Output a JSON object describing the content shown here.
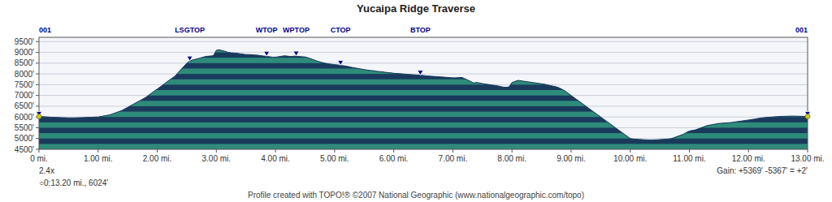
{
  "chart_data": {
    "type": "area",
    "title": "Yucaipa Ridge Traverse",
    "subtitle": "Profile created with TOPO!® ©2007 National Geographic (www.nationalgeographic.com/topo)",
    "footnotes": [
      "2.4x",
      "○0:13.20 mi., 6024'",
      "Gain: +5369' -5367' = +2'"
    ],
    "color": "#1a3a5c",
    "grid": true,
    "xlim": [
      0,
      13.0
    ],
    "ylim": [
      4500,
      9700
    ],
    "xticks": [
      {
        "value": 0,
        "label": "0 mi."
      },
      {
        "value": 1,
        "label": "1.00 mi."
      },
      {
        "value": 2,
        "label": "2.00 mi."
      },
      {
        "value": 3,
        "label": "3.00 mi."
      },
      {
        "value": 4,
        "label": "4.00 mi."
      },
      {
        "value": 5,
        "label": "5.00 mi."
      },
      {
        "value": 6,
        "label": "6.00 mi."
      },
      {
        "value": 7,
        "label": "7.00 mi."
      },
      {
        "value": 8,
        "label": "8.00 mi."
      },
      {
        "value": 9,
        "label": "9.00 mi."
      },
      {
        "value": 10,
        "label": "10.00 mi."
      },
      {
        "value": 11,
        "label": "11.00 mi."
      },
      {
        "value": 12,
        "label": "12.00 mi."
      },
      {
        "value": 13,
        "label": "13.00 mi."
      }
    ],
    "yticks": [
      {
        "value": 4500,
        "label": "4500'"
      },
      {
        "value": 5000,
        "label": "5000'"
      },
      {
        "value": 5500,
        "label": "5500'"
      },
      {
        "value": 6000,
        "label": "6000'"
      },
      {
        "value": 6500,
        "label": "6500'"
      },
      {
        "value": 7000,
        "label": "7000'"
      },
      {
        "value": 7500,
        "label": "7500'"
      },
      {
        "value": 8000,
        "label": "8000'"
      },
      {
        "value": 8500,
        "label": "8500'"
      },
      {
        "value": 9000,
        "label": "9000'"
      },
      {
        "value": 9500,
        "label": "9500'"
      }
    ],
    "annotations": [
      {
        "text": "001",
        "x": 0.0,
        "y": 6024
      },
      {
        "text": "LSGTOP",
        "x": 2.55,
        "y": 8600
      },
      {
        "text": "WTOP",
        "x": 3.85,
        "y": 8820
      },
      {
        "text": "WPTOP",
        "x": 4.35,
        "y": 8830
      },
      {
        "text": "CTOP",
        "x": 5.1,
        "y": 8400
      },
      {
        "text": "BTOP",
        "x": 6.45,
        "y": 7940
      },
      {
        "text": "001",
        "x": 13.0,
        "y": 6024
      }
    ],
    "x": [
      0.0,
      0.05,
      0.1,
      0.2,
      0.3,
      0.4,
      0.5,
      0.6,
      0.7,
      0.8,
      0.9,
      1.0,
      1.1,
      1.2,
      1.3,
      1.4,
      1.5,
      1.6,
      1.7,
      1.8,
      1.9,
      2.0,
      2.1,
      2.2,
      2.3,
      2.4,
      2.5,
      2.55,
      2.6,
      2.65,
      2.7,
      2.75,
      2.8,
      2.85,
      2.9,
      2.95,
      3.0,
      3.05,
      3.1,
      3.15,
      3.2,
      3.25,
      3.3,
      3.35,
      3.4,
      3.45,
      3.5,
      3.55,
      3.6,
      3.65,
      3.7,
      3.75,
      3.8,
      3.85,
      3.9,
      3.95,
      4.0,
      4.05,
      4.1,
      4.15,
      4.2,
      4.25,
      4.3,
      4.35,
      4.4,
      4.45,
      4.5,
      4.55,
      4.6,
      4.65,
      4.7,
      4.75,
      4.8,
      4.85,
      4.9,
      4.95,
      5.0,
      5.05,
      5.1,
      5.15,
      5.2,
      5.25,
      5.3,
      5.35,
      5.4,
      5.45,
      5.5,
      5.55,
      5.6,
      5.65,
      5.7,
      5.75,
      5.8,
      5.85,
      5.9,
      5.95,
      6.0,
      6.05,
      6.1,
      6.15,
      6.2,
      6.25,
      6.3,
      6.35,
      6.4,
      6.45,
      6.5,
      6.55,
      6.6,
      6.65,
      6.7,
      6.75,
      6.8,
      6.85,
      6.9,
      6.95,
      7.0,
      7.05,
      7.1,
      7.15,
      7.2,
      7.25,
      7.3,
      7.35,
      7.4,
      7.45,
      7.5,
      7.55,
      7.6,
      7.65,
      7.7,
      7.75,
      7.8,
      7.85,
      7.9,
      7.95,
      8.0,
      8.05,
      8.1,
      8.15,
      8.2,
      8.25,
      8.3,
      8.35,
      8.4,
      8.45,
      8.5,
      8.55,
      8.6,
      8.65,
      8.7,
      8.75,
      8.8,
      8.85,
      8.9,
      8.95,
      9.0,
      9.05,
      9.1,
      9.15,
      9.2,
      9.25,
      9.3,
      9.35,
      9.4,
      9.45,
      9.5,
      9.55,
      9.6,
      9.65,
      9.7,
      9.75,
      9.8,
      9.85,
      9.9,
      9.95,
      10.0,
      10.05,
      10.1,
      10.15,
      10.2,
      10.25,
      10.3,
      10.35,
      10.4,
      10.45,
      10.5,
      10.55,
      10.6,
      10.65,
      10.7,
      10.75,
      10.8,
      10.85,
      10.9,
      10.95,
      11.0,
      11.1,
      11.2,
      11.3,
      11.4,
      11.5,
      11.6,
      11.7,
      11.8,
      11.9,
      12.0,
      12.1,
      12.2,
      12.3,
      12.4,
      12.5,
      12.6,
      12.7,
      12.8,
      12.9,
      13.0
    ],
    "values": [
      6024,
      6020,
      6010,
      5990,
      5980,
      5970,
      5960,
      5960,
      5970,
      5980,
      5990,
      6000,
      6050,
      6100,
      6200,
      6300,
      6450,
      6600,
      6750,
      6900,
      7100,
      7300,
      7500,
      7700,
      7900,
      8200,
      8500,
      8600,
      8650,
      8680,
      8720,
      8760,
      8800,
      8820,
      8830,
      8850,
      9100,
      9120,
      9080,
      9050,
      9000,
      8980,
      8970,
      8960,
      8940,
      8920,
      8900,
      8900,
      8890,
      8880,
      8870,
      8850,
      8830,
      8820,
      8800,
      8780,
      8780,
      8800,
      8820,
      8840,
      8830,
      8810,
      8820,
      8830,
      8810,
      8800,
      8790,
      8750,
      8700,
      8650,
      8600,
      8560,
      8520,
      8490,
      8470,
      8450,
      8430,
      8420,
      8400,
      8380,
      8360,
      8330,
      8300,
      8280,
      8250,
      8230,
      8200,
      8180,
      8160,
      8150,
      8130,
      8110,
      8100,
      8080,
      8060,
      8050,
      8030,
      8020,
      8010,
      8000,
      7990,
      7980,
      7970,
      7960,
      7950,
      7940,
      7930,
      7910,
      7900,
      7890,
      7880,
      7870,
      7860,
      7850,
      7840,
      7830,
      7820,
      7820,
      7830,
      7840,
      7780,
      7720,
      7650,
      7580,
      7600,
      7580,
      7550,
      7530,
      7510,
      7490,
      7470,
      7450,
      7420,
      7390,
      7380,
      7400,
      7600,
      7650,
      7700,
      7680,
      7660,
      7640,
      7620,
      7600,
      7580,
      7560,
      7540,
      7520,
      7490,
      7460,
      7430,
      7400,
      7350,
      7280,
      7200,
      7100,
      7000,
      6900,
      6800,
      6700,
      6600,
      6500,
      6400,
      6300,
      6200,
      6100,
      6000,
      5900,
      5800,
      5700,
      5600,
      5500,
      5400,
      5300,
      5200,
      5100,
      5000,
      4980,
      4970,
      4960,
      4950,
      4940,
      4935,
      4930,
      4935,
      4940,
      4950,
      4960,
      4970,
      4980,
      5000,
      5050,
      5100,
      5150,
      5200,
      5280,
      5350,
      5400,
      5500,
      5600,
      5650,
      5700,
      5720,
      5740,
      5780,
      5820,
      5860,
      5900,
      5950,
      5980,
      6000,
      6020,
      6030,
      6040,
      6040,
      6030,
      6024
    ]
  }
}
